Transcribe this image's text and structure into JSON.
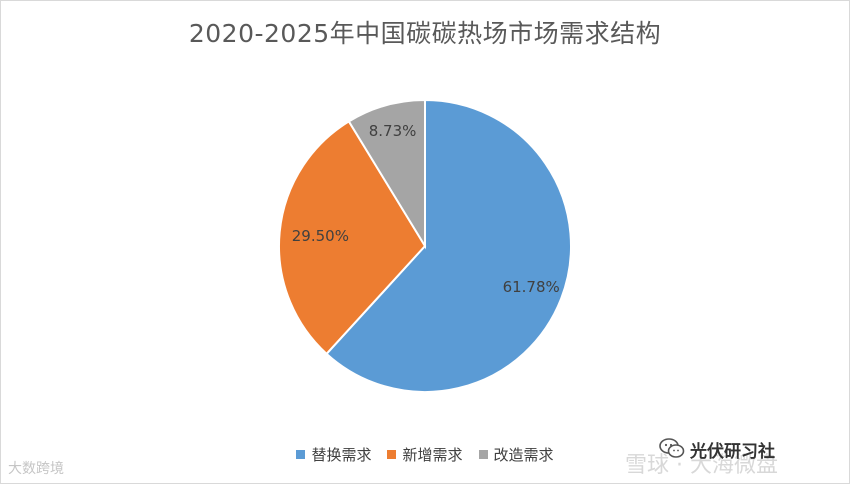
{
  "chart_data": {
    "type": "pie",
    "title": "2020-2025年中国碳碳热场市场需求结构",
    "categories": [
      "替换需求",
      "新增需求",
      "改造需求"
    ],
    "values": [
      61.78,
      29.5,
      8.73
    ],
    "data_labels": [
      "61.78%",
      "29.50%",
      "8.73%"
    ],
    "colors": [
      "#5b9bd5",
      "#ed7d31",
      "#a5a5a5"
    ],
    "legend_position": "bottom"
  },
  "watermarks": {
    "left": "大数跨境",
    "wechat": "光伏研习社",
    "xueqiu": "雪球 · 大海微盘"
  }
}
